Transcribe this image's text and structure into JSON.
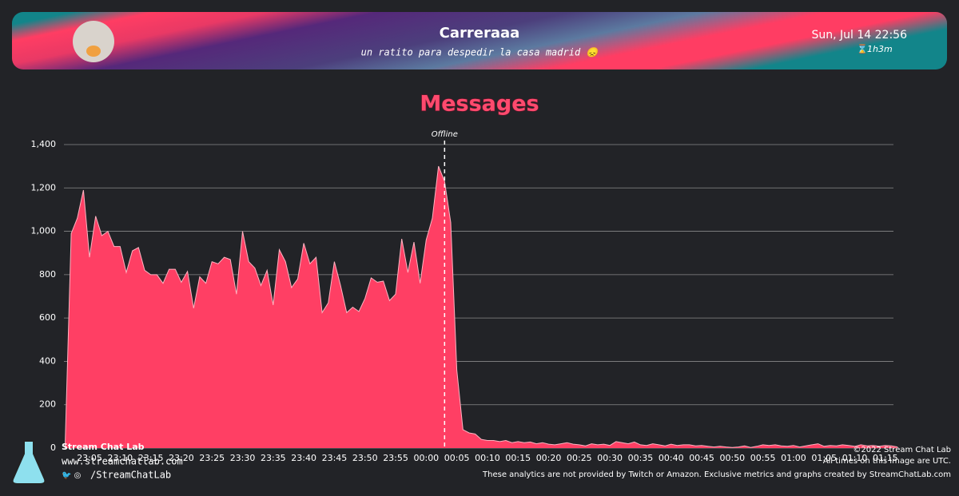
{
  "header": {
    "channel": "Carreraaa",
    "stream_title": "un ratito para despedir la casa madrid 😞",
    "date": "Sun, Jul 14 22:56",
    "duration": "1h3m"
  },
  "chart_data": {
    "type": "area",
    "title": "Messages",
    "color": "#ff3f64",
    "annotation": {
      "text": "Offline",
      "x": "00:03"
    },
    "x": [
      "23:01",
      "23:02",
      "23:03",
      "23:04",
      "23:05",
      "23:06",
      "23:07",
      "23:08",
      "23:09",
      "23:10",
      "23:11",
      "23:12",
      "23:13",
      "23:14",
      "23:15",
      "23:16",
      "23:17",
      "23:18",
      "23:19",
      "23:20",
      "23:21",
      "23:22",
      "23:23",
      "23:24",
      "23:25",
      "23:26",
      "23:27",
      "23:28",
      "23:29",
      "23:30",
      "23:31",
      "23:32",
      "23:33",
      "23:34",
      "23:35",
      "23:36",
      "23:37",
      "23:38",
      "23:39",
      "23:40",
      "23:41",
      "23:42",
      "23:43",
      "23:44",
      "23:45",
      "23:46",
      "23:47",
      "23:48",
      "23:49",
      "23:50",
      "23:51",
      "23:52",
      "23:53",
      "23:54",
      "23:55",
      "23:56",
      "23:57",
      "23:58",
      "23:59",
      "00:00",
      "00:01",
      "00:02",
      "00:03",
      "00:04",
      "00:05",
      "00:06",
      "00:07",
      "00:08",
      "00:09",
      "00:10",
      "00:11",
      "00:12",
      "00:13",
      "00:14",
      "00:15",
      "00:16",
      "00:17",
      "00:18",
      "00:19",
      "00:20",
      "00:21",
      "00:22",
      "00:23",
      "00:24",
      "00:25",
      "00:26",
      "00:27",
      "00:28",
      "00:29",
      "00:30",
      "00:31",
      "00:32",
      "00:33",
      "00:34",
      "00:35",
      "00:36",
      "00:37",
      "00:38",
      "00:39",
      "00:40",
      "00:41",
      "00:42",
      "00:43",
      "00:44",
      "00:45",
      "00:46",
      "00:47",
      "00:48",
      "00:49",
      "00:50",
      "00:51",
      "00:52",
      "00:53",
      "00:54",
      "00:55",
      "00:56",
      "00:57",
      "00:58",
      "00:59",
      "01:00",
      "01:01",
      "01:02",
      "01:03",
      "01:04",
      "01:05",
      "01:06",
      "01:07",
      "01:08",
      "01:09",
      "01:10",
      "01:11",
      "01:12",
      "01:13",
      "01:14",
      "01:15",
      "01:16",
      "01:17"
    ],
    "values": [
      0,
      990,
      1060,
      1190,
      880,
      1070,
      980,
      1000,
      930,
      930,
      810,
      910,
      925,
      820,
      800,
      800,
      760,
      825,
      825,
      765,
      815,
      645,
      790,
      760,
      860,
      850,
      880,
      870,
      710,
      1000,
      860,
      830,
      750,
      820,
      660,
      915,
      860,
      740,
      780,
      945,
      850,
      880,
      625,
      670,
      860,
      750,
      625,
      650,
      630,
      690,
      785,
      765,
      770,
      680,
      710,
      965,
      810,
      950,
      760,
      960,
      1060,
      1300,
      1230,
      1040,
      360,
      85,
      70,
      65,
      40,
      35,
      35,
      30,
      35,
      25,
      30,
      25,
      28,
      20,
      25,
      18,
      15,
      20,
      25,
      18,
      15,
      10,
      20,
      15,
      18,
      12,
      30,
      25,
      20,
      28,
      15,
      12,
      20,
      15,
      10,
      18,
      12,
      15,
      15,
      10,
      12,
      8,
      5,
      8,
      5,
      3,
      5,
      10,
      3,
      8,
      15,
      12,
      15,
      10,
      8,
      12,
      5,
      10,
      15,
      20,
      8,
      12,
      10,
      15,
      12,
      8,
      15,
      10,
      12,
      8,
      12,
      10,
      5
    ],
    "xticks": [
      "23:05",
      "23:10",
      "23:15",
      "23:20",
      "23:25",
      "23:30",
      "23:35",
      "23:40",
      "23:45",
      "23:50",
      "23:55",
      "00:00",
      "00:05",
      "00:10",
      "00:15",
      "00:20",
      "00:25",
      "00:30",
      "00:35",
      "00:40",
      "00:45",
      "00:50",
      "00:55",
      "01:00",
      "01:05",
      "01:10",
      "01:15"
    ],
    "ylim": [
      0,
      1400
    ],
    "yticks": [
      0,
      200,
      400,
      600,
      800,
      {
        "value": 1000,
        "label": "1,000"
      },
      {
        "value": 1200,
        "label": "1,200"
      },
      {
        "value": 1400,
        "label": "1,400"
      }
    ],
    "grid": true
  },
  "footer": {
    "brand": "Stream Chat Lab",
    "website": "www.streamchatlab.com",
    "handle": "/StreamChatLab",
    "copyright": "©2022 Stream Chat Lab",
    "timezone_note": "All times on this image are UTC.",
    "disclaimer": "These analytics are not provided by Twitch or Amazon. Exclusive metrics and graphs created by StreamChatLab.com"
  }
}
